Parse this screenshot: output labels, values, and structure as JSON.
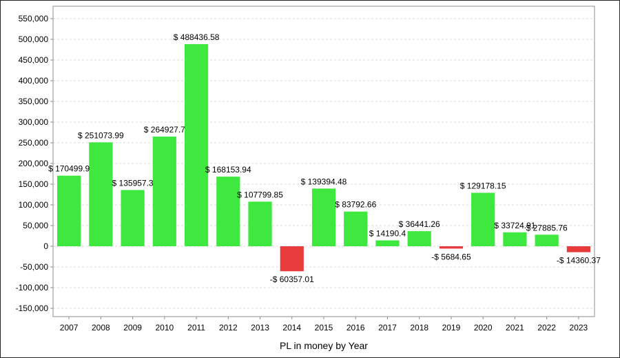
{
  "chart_data": {
    "type": "bar",
    "title": "",
    "xlabel": "PL in money by Year",
    "ylabel": "",
    "ylim": [
      -170000,
      580000
    ],
    "yticks": [
      550000,
      500000,
      450000,
      400000,
      350000,
      300000,
      250000,
      200000,
      150000,
      100000,
      50000,
      0,
      -50000,
      -100000,
      -150000
    ],
    "ytick_labels": [
      "550,000",
      "500,000",
      "450,000",
      "400,000",
      "350,000",
      "300,000",
      "250,000",
      "200,000",
      "150,000",
      "100,000",
      "50,000",
      "0",
      "-50,000",
      "-100,000",
      "-150,000"
    ],
    "categories": [
      "2007",
      "2008",
      "2009",
      "2010",
      "2011",
      "2012",
      "2013",
      "2014",
      "2015",
      "2016",
      "2017",
      "2018",
      "2019",
      "2020",
      "2021",
      "2022",
      "2023"
    ],
    "values": [
      170499.9,
      251073.99,
      135957.3,
      264927.7,
      488436.58,
      168153.94,
      107799.85,
      -60357.01,
      139394.48,
      83792.66,
      14190.4,
      36441.26,
      -5684.65,
      129178.15,
      33724.91,
      27885.76,
      -14360.37
    ],
    "data_labels": [
      "$ 170499.9",
      "$ 251073.99",
      "$ 135957.3",
      "$ 264927.7",
      "$ 488436.58",
      "$ 168153.94",
      "$ 107799.85",
      "-$ 60357.01",
      "$ 139394.48",
      "$ 83792.66",
      "$ 14190.4",
      "$ 36441.26",
      "-$ 5684.65",
      "$ 129178.15",
      "$ 33724.91",
      "$ 27885.76",
      "-$ 14360.37"
    ],
    "grid": true,
    "legend": "none",
    "colors": {
      "positive": "#3ee83e",
      "negative": "#e83c3c",
      "grid": "#d9d9d9",
      "axis": "#8c8c8c"
    }
  }
}
